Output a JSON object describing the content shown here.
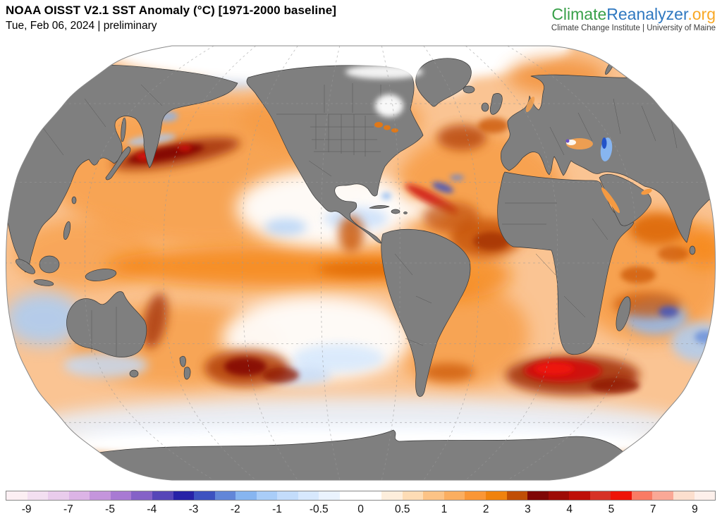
{
  "header": {
    "title": "NOAA OISST V2.1 SST Anomaly (°C) [1971-2000 baseline]",
    "subtitle": "Tue, Feb 06, 2024 | preliminary"
  },
  "logo": {
    "part1": "Climate",
    "part2": "Reanalyzer",
    "part3": ".org",
    "tagline": "Climate Change Institute | University of Maine",
    "colors": {
      "part1": "#38A049",
      "part2": "#2F78C0",
      "part3": "#F9A825"
    }
  },
  "map": {
    "projection": "Robinson",
    "land_color": "#7f7f7f",
    "coastline_color": "#383838",
    "ice_nodata_color": "#ffffff",
    "graticule_style": "dashed gray",
    "notable_features": [
      {
        "region": "Northwest Pacific / Kuroshio Extension",
        "anomaly": "+3 to +5 °C (dark red band)"
      },
      {
        "region": "Equatorial East Pacific (El Niño)",
        "anomaly": "+1 to +2.5 °C"
      },
      {
        "region": "Central/Northeast North Pacific",
        "anomaly": "-0.5 to +0.5 °C (white/light blue)"
      },
      {
        "region": "North Atlantic",
        "anomaly": "+1 to +3 °C"
      },
      {
        "region": "Agulhas region south of Africa",
        "anomaly": "+4 to +6 °C (bright red)"
      },
      {
        "region": "Tasman Sea east of New Zealand",
        "anomaly": "+3 to +4 °C"
      },
      {
        "region": "Southern Ocean ring",
        "anomaly": "-1 to 0 °C (pale blue)"
      },
      {
        "region": "Ocean west of Australia",
        "anomaly": "-1.5 °C (blue)"
      },
      {
        "region": "Arctic sea-ice zone / Hudson Bay",
        "anomaly": "no data (white)"
      }
    ]
  },
  "colorbar": {
    "unit": "°C",
    "frame_color": "#888888",
    "segments": [
      "#FCEFF3",
      "#F3DFF1",
      "#E9CCEC",
      "#DCB4E6",
      "#C495DC",
      "#A87AD3",
      "#8562C7",
      "#5646B8",
      "#2722A7",
      "#3D52C0",
      "#6286D8",
      "#87B5F0",
      "#A9CDF8",
      "#C3DCFB",
      "#D7E8FD",
      "#EAF3FE",
      "#FFFFFF",
      "#FFFFFF",
      "#FDEEDC",
      "#FDDCB5",
      "#FCC386",
      "#FBAE60",
      "#FA9636",
      "#F0820D",
      "#C04E05",
      "#7F0605",
      "#9D0B06",
      "#BE1008",
      "#D63226",
      "#EE1408",
      "#F97B64",
      "#FAA896",
      "#FCDFCE",
      "#FDF0EB"
    ],
    "tick_labels": [
      "-9",
      "-7",
      "-5",
      "-4",
      "-3",
      "-2",
      "-1",
      "-0.5",
      "0",
      "0.5",
      "1",
      "2",
      "3",
      "4",
      "5",
      "7",
      "9"
    ]
  }
}
